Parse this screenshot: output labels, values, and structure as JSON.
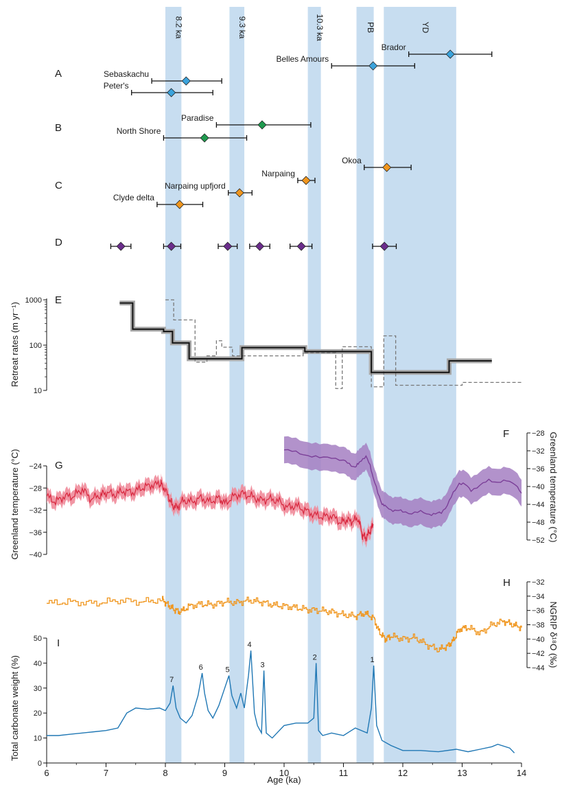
{
  "chart_data": {
    "type": "composite",
    "x_axis": {
      "label": "Age (ka)",
      "lim": [
        6,
        14
      ],
      "ticks": [
        6,
        7,
        8,
        9,
        10,
        11,
        12,
        13,
        14
      ]
    },
    "event_bands": [
      {
        "label": "8.2 ka",
        "start": 8.0,
        "end": 8.27
      },
      {
        "label": "9.3 ka",
        "start": 9.08,
        "end": 9.33
      },
      {
        "label": "10.3 ka",
        "start": 10.4,
        "end": 10.62
      },
      {
        "label": "PB",
        "start": 11.22,
        "end": 11.51
      },
      {
        "label": "YD",
        "start": 11.68,
        "end": 12.9
      }
    ],
    "panels": {
      "A": {
        "label": "A",
        "color": "#3ba3dc",
        "points": [
          {
            "site": "Brador",
            "age": 12.8,
            "err_low": 12.1,
            "err_high": 13.5
          },
          {
            "site": "Belles Amours",
            "age": 11.5,
            "err_low": 10.8,
            "err_high": 12.2
          },
          {
            "site": "Sebaskachu",
            "age": 8.35,
            "err_low": 7.77,
            "err_high": 8.95
          },
          {
            "site": "Peter's",
            "age": 8.1,
            "err_low": 7.43,
            "err_high": 8.8
          }
        ]
      },
      "B": {
        "label": "B",
        "color": "#1f9a4e",
        "points": [
          {
            "site": "Paradise",
            "age": 9.63,
            "err_low": 8.86,
            "err_high": 10.45
          },
          {
            "site": "North Shore",
            "age": 8.66,
            "err_low": 7.97,
            "err_high": 9.37
          }
        ]
      },
      "C": {
        "label": "C",
        "color": "#f0961e",
        "points": [
          {
            "site": "Okoa",
            "age": 11.73,
            "err_low": 11.35,
            "err_high": 12.14
          },
          {
            "site": "Narpaing",
            "age": 10.37,
            "err_low": 10.23,
            "err_high": 10.52
          },
          {
            "site": "Narpaing upfjord",
            "age": 9.25,
            "err_low": 9.06,
            "err_high": 9.46
          },
          {
            "site": "Clyde delta",
            "age": 8.24,
            "err_low": 7.86,
            "err_high": 8.63
          }
        ]
      },
      "D": {
        "label": "D",
        "color": "#6b2d8c",
        "points": [
          {
            "age": 7.25,
            "err_low": 7.08,
            "err_high": 7.42
          },
          {
            "age": 8.1,
            "err_low": 7.97,
            "err_high": 8.26
          },
          {
            "age": 9.05,
            "err_low": 8.89,
            "err_high": 9.21
          },
          {
            "age": 9.59,
            "err_low": 9.42,
            "err_high": 9.76
          },
          {
            "age": 10.29,
            "err_low": 10.1,
            "err_high": 10.47
          },
          {
            "age": 11.69,
            "err_low": 11.49,
            "err_high": 11.89
          }
        ]
      },
      "E": {
        "label": "E",
        "ylabel": "Retreat rates (m yr⁻¹)",
        "yscale": "log",
        "ylim": [
          10,
          1000
        ],
        "yticks": [
          10,
          100,
          1000
        ],
        "ytick_labels": [
          "10",
          "100",
          "1000"
        ],
        "series": [
          {
            "style": "solid",
            "color": "#111111",
            "uncertainty_color": "#a8a8a8",
            "steps": [
              [
                7.23,
                7.45,
                850
              ],
              [
                7.45,
                7.97,
                225
              ],
              [
                7.97,
                8.12,
                200
              ],
              [
                8.12,
                8.4,
                112
              ],
              [
                8.4,
                9.29,
                50
              ],
              [
                9.29,
                10.35,
                88
              ],
              [
                10.35,
                11.47,
                72
              ],
              [
                11.47,
                12.78,
                25
              ],
              [
                12.78,
                13.5,
                45
              ]
            ]
          },
          {
            "style": "dashed",
            "color": "#777777",
            "steps": [
              [
                8.0,
                8.14,
                1000
              ],
              [
                8.14,
                8.5,
                360
              ],
              [
                8.5,
                8.7,
                42
              ],
              [
                8.7,
                8.86,
                58
              ],
              [
                8.86,
                8.95,
                125
              ],
              [
                8.95,
                9.13,
                90
              ],
              [
                9.13,
                10.32,
                58
              ],
              [
                10.32,
                10.87,
                68
              ],
              [
                10.87,
                10.98,
                11
              ],
              [
                10.98,
                11.47,
                92
              ],
              [
                11.47,
                11.68,
                12
              ],
              [
                11.68,
                11.88,
                160
              ],
              [
                11.88,
                13.0,
                13
              ],
              [
                13.0,
                14.0,
                15
              ]
            ]
          }
        ]
      },
      "F": {
        "label": "F",
        "ylabel": "Greenland temperature (°C)",
        "ylim": [
          -52,
          -28
        ],
        "yticks": [
          -52,
          -48,
          -44,
          -40,
          -36,
          -32,
          -28
        ],
        "color": "#7b3f98",
        "band_color": "#a57fc2",
        "band_halfwidth": 3.0,
        "x": [
          10.0,
          10.2,
          10.4,
          10.6,
          10.8,
          11.0,
          11.1,
          11.2,
          11.25,
          11.3,
          11.38,
          11.45,
          11.5,
          11.58,
          11.65,
          11.7,
          11.8,
          11.9,
          12.0,
          12.15,
          12.3,
          12.45,
          12.55,
          12.65,
          12.75,
          12.85,
          12.95,
          13.05,
          13.15,
          13.3,
          13.45,
          13.6,
          13.75,
          13.9,
          14.0
        ],
        "y": [
          -31.8,
          -32.3,
          -33.0,
          -33.6,
          -33.4,
          -34.2,
          -35.0,
          -35.6,
          -35.0,
          -34.0,
          -33.4,
          -35.2,
          -38.0,
          -41.5,
          -43.8,
          -44.5,
          -45.2,
          -45.4,
          -45.6,
          -46.0,
          -45.7,
          -46.2,
          -46.2,
          -45.8,
          -44.2,
          -41.5,
          -39.2,
          -39.6,
          -40.8,
          -39.8,
          -38.6,
          -39.0,
          -38.8,
          -39.4,
          -41.5
        ]
      },
      "G": {
        "label": "G",
        "ylabel": "Greenland temperature (°C)",
        "ylim": [
          -40,
          -24
        ],
        "yticks": [
          -40,
          -36,
          -32,
          -28,
          -24
        ],
        "color": "#d7263d",
        "band_color": "#f08b9a",
        "band_halfwidth": 1.2,
        "x": [
          6.0,
          6.15,
          6.3,
          6.45,
          6.6,
          6.75,
          6.9,
          7.0,
          7.15,
          7.3,
          7.45,
          7.6,
          7.75,
          7.9,
          7.95,
          8.05,
          8.12,
          8.2,
          8.3,
          8.45,
          8.6,
          8.75,
          8.9,
          9.0,
          9.15,
          9.3,
          9.45,
          9.6,
          9.75,
          9.9,
          10.05,
          10.2,
          10.35,
          10.5,
          10.65,
          10.8,
          10.95,
          11.05,
          11.15,
          11.25,
          11.32,
          11.38,
          11.45,
          11.5
        ],
        "y": [
          -29.5,
          -30.5,
          -29.5,
          -29.5,
          -28.2,
          -30.0,
          -29.3,
          -28.8,
          -29.2,
          -28.5,
          -28.8,
          -28.0,
          -27.5,
          -27.3,
          -27.4,
          -29.5,
          -31.2,
          -31.5,
          -30.2,
          -30.5,
          -29.8,
          -30.5,
          -29.8,
          -30.8,
          -29.5,
          -29.0,
          -29.5,
          -30.2,
          -30.0,
          -30.3,
          -31.5,
          -31.2,
          -32.0,
          -32.8,
          -33.2,
          -33.0,
          -34.2,
          -33.8,
          -34.0,
          -33.5,
          -36.5,
          -37.0,
          -35.8,
          -34.5
        ]
      },
      "H": {
        "label": "H",
        "ylabel": "NGRIP δ¹⁸O (‰)",
        "ylim": [
          -44,
          -32
        ],
        "yticks": [
          -44,
          -42,
          -40,
          -38,
          -36,
          -34,
          -32
        ],
        "color": "#f0961e",
        "x": [
          6.0,
          6.4,
          6.8,
          7.2,
          7.6,
          7.95,
          8.05,
          8.15,
          8.25,
          8.4,
          8.6,
          8.8,
          9.0,
          9.2,
          9.4,
          9.6,
          9.8,
          10.0,
          10.2,
          10.4,
          10.6,
          10.8,
          11.0,
          11.2,
          11.35,
          11.5,
          11.6,
          11.7,
          11.8,
          12.0,
          12.2,
          12.4,
          12.6,
          12.75,
          12.85,
          12.95,
          13.1,
          13.3,
          13.5,
          13.7,
          13.85,
          14.0
        ],
        "y": [
          -35.0,
          -34.8,
          -35.0,
          -34.6,
          -34.8,
          -34.5,
          -35.3,
          -35.9,
          -36.2,
          -35.4,
          -35.1,
          -35.2,
          -34.8,
          -34.9,
          -34.6,
          -34.8,
          -35.2,
          -35.4,
          -35.6,
          -35.9,
          -36.0,
          -36.2,
          -36.6,
          -36.8,
          -36.4,
          -37.0,
          -39.0,
          -40.0,
          -39.6,
          -40.0,
          -39.8,
          -40.8,
          -41.5,
          -41.0,
          -40.2,
          -38.6,
          -38.4,
          -39.2,
          -38.0,
          -37.5,
          -38.0,
          -38.4
        ]
      },
      "I": {
        "label": "I",
        "ylabel": "Total carbonate weight (%)",
        "ylim": [
          0,
          50
        ],
        "yticks": [
          0,
          10,
          20,
          30,
          40,
          50
        ],
        "color": "#1f77b4",
        "x": [
          6.0,
          6.2,
          6.4,
          6.6,
          6.8,
          7.0,
          7.2,
          7.35,
          7.5,
          7.7,
          7.9,
          8.0,
          8.08,
          8.13,
          8.18,
          8.25,
          8.35,
          8.45,
          8.55,
          8.62,
          8.66,
          8.72,
          8.8,
          8.9,
          9.0,
          9.07,
          9.12,
          9.2,
          9.27,
          9.33,
          9.4,
          9.44,
          9.5,
          9.55,
          9.62,
          9.66,
          9.7,
          9.8,
          10.0,
          10.2,
          10.4,
          10.5,
          10.54,
          10.58,
          10.65,
          10.8,
          11.0,
          11.2,
          11.4,
          11.47,
          11.51,
          11.56,
          11.65,
          11.8,
          12.0,
          12.3,
          12.6,
          12.9,
          13.1,
          13.3,
          13.5,
          13.6,
          13.8,
          13.88
        ],
        "y": [
          11,
          11,
          11.5,
          12,
          12.5,
          13,
          14,
          20,
          22,
          21.5,
          22,
          21,
          24,
          31,
          22,
          18,
          16,
          19,
          27,
          36,
          28,
          21,
          18,
          23,
          30,
          35,
          27,
          22,
          28,
          22,
          35,
          45,
          20,
          15,
          12,
          37,
          12,
          10,
          15,
          16,
          16,
          18,
          40,
          13,
          11,
          12,
          11,
          14,
          12,
          22,
          39,
          15,
          9,
          7,
          5,
          5,
          4.5,
          5.5,
          4.5,
          5.5,
          6.5,
          7.5,
          6,
          4
        ],
        "peaks": [
          {
            "label": "1",
            "age": 11.51,
            "value": 39
          },
          {
            "label": "2",
            "age": 10.54,
            "value": 40
          },
          {
            "label": "3",
            "age": 9.66,
            "value": 37
          },
          {
            "label": "4",
            "age": 9.44,
            "value": 45
          },
          {
            "label": "5",
            "age": 9.07,
            "value": 35
          },
          {
            "label": "6",
            "age": 8.62,
            "value": 36
          },
          {
            "label": "7",
            "age": 8.13,
            "value": 31
          }
        ]
      }
    }
  }
}
